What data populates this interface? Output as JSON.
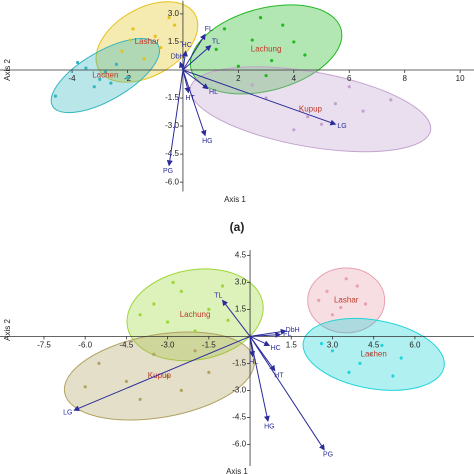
{
  "chart_data": [
    {
      "type": "scatter",
      "xlabel": "Axis 1",
      "ylabel": "Axis 2",
      "panel_label": "(a)",
      "xlim": [
        -6.6,
        10.5
      ],
      "ylim": [
        -6.5,
        3.7
      ],
      "xticks": [
        -4,
        -2,
        2,
        4,
        6,
        8,
        10
      ],
      "yticks": [
        {
          "value": 3,
          "label": "3.0"
        },
        {
          "value": 1.5,
          "label": "1.5"
        },
        {
          "value": -1.5,
          "label": "-1.5"
        },
        {
          "value": -3,
          "label": "-3.0"
        },
        {
          "value": -4.5,
          "label": "-4.5"
        },
        {
          "value": -6,
          "label": "-6.0"
        }
      ],
      "vector_color": "#2b2b9a",
      "series": [
        {
          "name": "Lashar",
          "color": "#e3c21a",
          "ellipse": {
            "cx": -1.3,
            "cy": 1.5,
            "rx": 2.0,
            "ry": 1.8,
            "angle": -30
          },
          "x": [
            -1.8,
            -1.0,
            -0.5,
            -2.2,
            -1.4,
            -0.8,
            -1.9,
            -0.3
          ],
          "y": [
            2.2,
            1.8,
            2.8,
            1.0,
            0.6,
            1.2,
            1.6,
            2.4
          ]
        },
        {
          "name": "Lachen",
          "color": "#34b6c0",
          "ellipse": {
            "cx": -2.8,
            "cy": -0.3,
            "rx": 2.2,
            "ry": 1.3,
            "angle": -30
          },
          "x": [
            -3.5,
            -3.0,
            -2.4,
            -2.8,
            -3.2,
            -2.0,
            -3.8,
            -4.6,
            -2.6
          ],
          "y": [
            0.1,
            -0.5,
            0.3,
            -0.1,
            -0.9,
            -0.4,
            0.4,
            -1.4,
            -0.7
          ]
        },
        {
          "name": "Lachung",
          "color": "#22b822",
          "ellipse": {
            "cx": 3.0,
            "cy": 1.1,
            "rx": 2.8,
            "ry": 2.2,
            "angle": -15
          },
          "x": [
            1.5,
            2.5,
            3.2,
            4.0,
            2.0,
            3.6,
            2.8,
            4.4,
            1.2,
            3.0
          ],
          "y": [
            2.2,
            1.6,
            0.5,
            1.5,
            0.2,
            2.4,
            2.8,
            0.8,
            1.1,
            -0.3
          ]
        },
        {
          "name": "Kupup",
          "color": "#c4a2cf",
          "ellipse": {
            "cx": 4.6,
            "cy": -2.1,
            "rx": 4.4,
            "ry": 2.0,
            "angle": 10
          },
          "x": [
            3,
            4.5,
            5.5,
            6.5,
            2.5,
            4,
            7.5,
            5,
            6
          ],
          "y": [
            -1.5,
            -2.5,
            -1.8,
            -2.2,
            -0.8,
            -3.2,
            -1.6,
            -2.9,
            -0.9
          ]
        }
      ],
      "vectors": [
        {
          "name": "FL",
          "x": 0.8,
          "y": 1.9
        },
        {
          "name": "TL",
          "x": 1.0,
          "y": 1.3
        },
        {
          "name": "HC",
          "x": 0.1,
          "y": 1.0
        },
        {
          "name": "DbH",
          "x": -0.1,
          "y": 0.4
        },
        {
          "name": "HL",
          "x": 0.9,
          "y": -1.0
        },
        {
          "name": "HT",
          "x": 0.2,
          "y": -1.2
        },
        {
          "name": "HG",
          "x": 0.8,
          "y": -3.5
        },
        {
          "name": "PG",
          "x": -0.5,
          "y": -5.1
        },
        {
          "name": "LG",
          "x": 5.5,
          "y": -2.9
        }
      ]
    },
    {
      "type": "scatter",
      "xlabel": "Axis 1",
      "ylabel": "Axis 2",
      "xlim": [
        -9.1,
        8.15
      ],
      "ylim": [
        -7.2,
        4.8
      ],
      "xticks": [
        {
          "value": -7.5,
          "label": "-7.5"
        },
        {
          "value": -6,
          "label": "-6.0"
        },
        {
          "value": -4.5,
          "label": "-4.5"
        },
        {
          "value": -3,
          "label": "-3.0"
        },
        {
          "value": -1.5,
          "label": "-1.5"
        },
        {
          "value": 1.5,
          "label": "1.5"
        },
        {
          "value": 3,
          "label": "3.0"
        },
        {
          "value": 4.5,
          "label": "4.5"
        },
        {
          "value": 6,
          "label": "6.0"
        }
      ],
      "yticks": [
        {
          "value": 4.5,
          "label": "4.5"
        },
        {
          "value": 3,
          "label": "3.0"
        },
        {
          "value": 1.5,
          "label": "1.5"
        },
        {
          "value": -1.5,
          "label": "-1.5"
        },
        {
          "value": -3,
          "label": "-3.0"
        },
        {
          "value": -4.5,
          "label": "-4.5"
        },
        {
          "value": -6,
          "label": "-6.0"
        }
      ],
      "vector_color": "#2b2b9a",
      "series": [
        {
          "name": "Lachung",
          "color": "#9ed63a",
          "ellipse": {
            "cx": -2.0,
            "cy": 1.2,
            "rx": 2.5,
            "ry": 2.5,
            "angle": -10
          },
          "x": [
            -3.5,
            -2.5,
            -1.5,
            -3.0,
            -2.0,
            -1.0,
            -4.0,
            -2.8,
            -0.8
          ],
          "y": [
            1.8,
            2.5,
            1.5,
            0.8,
            0.3,
            2.8,
            1.2,
            3.0,
            0.9
          ]
        },
        {
          "name": "Kupup",
          "color": "#b2a262",
          "ellipse": {
            "cx": -3.3,
            "cy": -2.2,
            "rx": 3.5,
            "ry": 2.3,
            "angle": -10
          },
          "x": [
            -5.5,
            -4.5,
            -3.5,
            -2.5,
            -1.5,
            -4.0,
            -3.0,
            -6.0,
            -2.0
          ],
          "y": [
            -1.5,
            -2.5,
            -1.0,
            -3.0,
            -2.0,
            -3.5,
            -2.2,
            -2.8,
            -0.8
          ]
        },
        {
          "name": "Lashar",
          "color": "#e8a0b0",
          "ellipse": {
            "cx": 3.5,
            "cy": 2.0,
            "rx": 1.4,
            "ry": 1.8,
            "angle": 0
          },
          "x": [
            2.8,
            3.5,
            4.2,
            3.0,
            3.9,
            3.3,
            2.5
          ],
          "y": [
            2.5,
            3.2,
            1.8,
            1.2,
            2.8,
            1.6,
            2.0
          ]
        },
        {
          "name": "Lachen",
          "color": "#20d4d8",
          "ellipse": {
            "cx": 4.5,
            "cy": -1.0,
            "rx": 2.6,
            "ry": 1.9,
            "angle": 10
          },
          "x": [
            3.0,
            4.0,
            4.8,
            5.5,
            3.6,
            4.4,
            5.2,
            2.6
          ],
          "y": [
            -0.8,
            -1.5,
            -0.5,
            -1.2,
            -2.0,
            -1.0,
            -2.2,
            -0.4
          ]
        }
      ],
      "vectors": [
        {
          "name": "TL",
          "x": -1.0,
          "y": 2.0
        },
        {
          "name": "LG",
          "x": -6.4,
          "y": -4.1
        },
        {
          "name": "HG",
          "x": 0.65,
          "y": -4.7
        },
        {
          "name": "PG",
          "x": 2.7,
          "y": -6.3
        },
        {
          "name": "HT",
          "x": 0.9,
          "y": -1.9
        },
        {
          "name": "HC",
          "x": 0.7,
          "y": -0.5
        },
        {
          "name": "DbH",
          "x": 1.3,
          "y": 0.3
        },
        {
          "name": "FL",
          "x": 1.1,
          "y": 0.1
        },
        {
          "name": "HL",
          "x": 0.1,
          "y": -1.1
        }
      ]
    }
  ]
}
